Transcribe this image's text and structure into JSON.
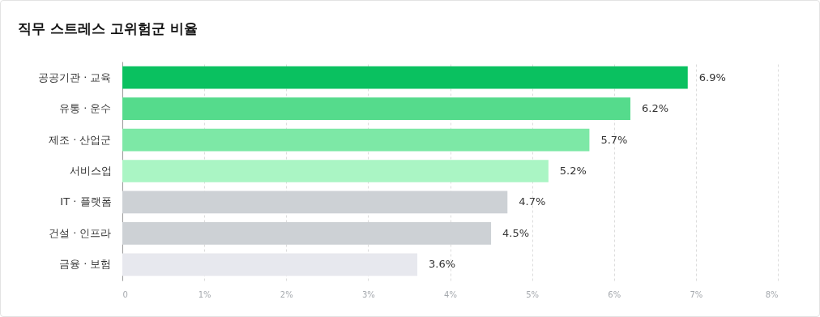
{
  "chart_data": {
    "type": "bar",
    "orientation": "horizontal",
    "title": "직무 스트레스 고위험군 비율",
    "categories": [
      "공공기관 · 교육",
      "유통 · 운수",
      "제조 · 산업군",
      "서비스업",
      "IT · 플랫폼",
      "건설 · 인프라",
      "금융 · 보험"
    ],
    "values": [
      6.9,
      6.2,
      5.7,
      5.2,
      4.7,
      4.5,
      3.6
    ],
    "value_labels": [
      "6.9%",
      "6.2%",
      "5.7%",
      "5.2%",
      "4.7%",
      "4.5%",
      "3.6%"
    ],
    "colors": [
      "#0ac160",
      "#55db8c",
      "#7de8a6",
      "#aaf5c4",
      "#cdd1d5",
      "#cdd1d5",
      "#e7e8ee"
    ],
    "xlim": [
      0,
      8
    ],
    "xticks": [
      0,
      {
        "value": 1,
        "label": "1%"
      },
      {
        "value": 2,
        "label": "2%"
      },
      {
        "value": 3,
        "label": "3%"
      },
      {
        "value": 4,
        "label": "4%"
      },
      {
        "value": 5,
        "label": "5%"
      },
      {
        "value": 6,
        "label": "6%"
      },
      {
        "value": 7,
        "label": "7%"
      },
      {
        "value": 8,
        "label": "8%"
      }
    ],
    "grid": "x"
  }
}
